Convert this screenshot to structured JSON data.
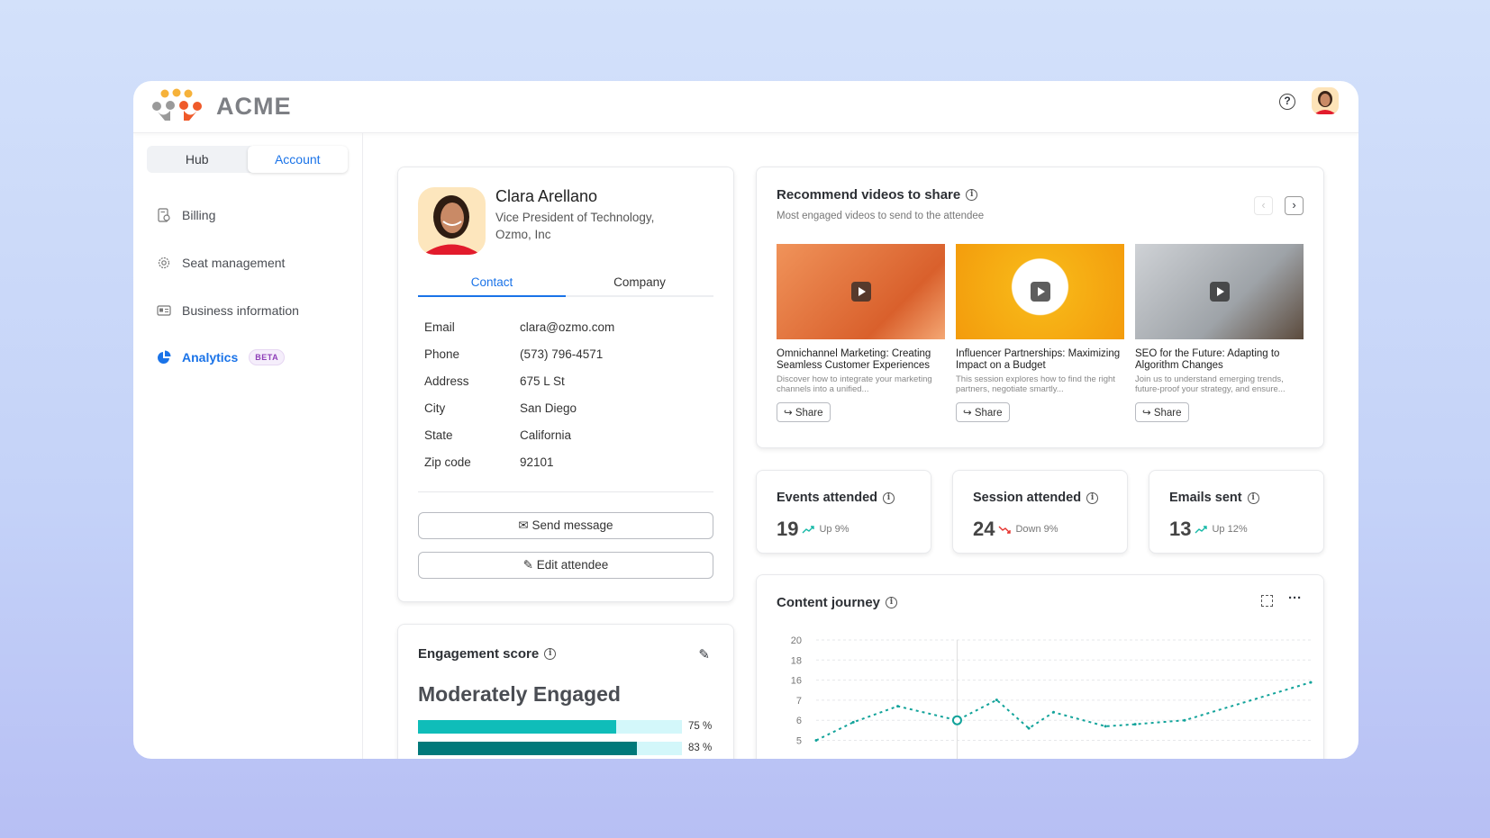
{
  "app": {
    "name": "ACME"
  },
  "header": {
    "help_icon": "question-circle-icon",
    "avatar": "user-avatar"
  },
  "sidebar": {
    "toggle": [
      "Hub",
      "Account"
    ],
    "active_toggle": "Account",
    "items": [
      {
        "label": "Billing",
        "icon": "billing-receipt-icon"
      },
      {
        "label": "Seat management",
        "icon": "gear-icon"
      },
      {
        "label": "Business information",
        "icon": "id-card-icon"
      },
      {
        "label": "Analytics",
        "icon": "pie-chart-icon",
        "badge": "BETA",
        "active": true
      }
    ]
  },
  "profile": {
    "name": "Clara Arellano",
    "title": "Vice President of Technology, Ozmo, Inc",
    "tabs": [
      "Contact",
      "Company"
    ],
    "fields": [
      {
        "k": "Email",
        "v": "clara@ozmo.com"
      },
      {
        "k": "Phone",
        "v": "(573) 796-4571"
      },
      {
        "k": "Address",
        "v": "675 L St"
      },
      {
        "k": "City",
        "v": "San Diego"
      },
      {
        "k": "State",
        "v": "California"
      },
      {
        "k": "Zip code",
        "v": "92101"
      }
    ],
    "send_label": "Send message",
    "edit_label": "Edit attendee"
  },
  "engagement": {
    "title": "Engagement score",
    "level": "Moderately Engaged",
    "bars": [
      {
        "value": 75,
        "label": "75 %",
        "color": "#0fbdb9"
      },
      {
        "value": 83,
        "label": "83 %",
        "color": "#00797a"
      }
    ]
  },
  "videos": {
    "title": "Recommend videos to share",
    "subtitle": "Most engaged videos to send to the attendee",
    "share_label": "Share",
    "items": [
      {
        "title": "Omnichannel Marketing: Creating Seamless Customer Experiences",
        "desc": "Discover how to integrate your marketing channels into a unified..."
      },
      {
        "title": "Influencer Partnerships: Maximizing Impact on a Budget",
        "desc": "This session explores how to find the right partners, negotiate smartly..."
      },
      {
        "title": "SEO for the Future: Adapting to Algorithm Changes",
        "desc": "Join us to understand emerging trends, future-proof your strategy, and ensure..."
      }
    ]
  },
  "stats": [
    {
      "label": "Events attended",
      "value": "19",
      "trend": "Up 9%",
      "dir": "up"
    },
    {
      "label": "Session attended",
      "value": "24",
      "trend": "Down 9%",
      "dir": "down"
    },
    {
      "label": "Emails sent",
      "value": "13",
      "trend": "Up 12%",
      "dir": "up"
    }
  ],
  "colors": {
    "accent": "#1a73e8",
    "up": "#14b8a6",
    "down": "#e5322d",
    "line": "#12a39a"
  },
  "chart_data": {
    "type": "line",
    "title": "Content journey",
    "yticks": [
      5,
      6,
      7,
      16,
      18,
      20
    ],
    "values": [
      5,
      5.9,
      6.7,
      6.0,
      7.1,
      5.6,
      6.4,
      5.7,
      5.8,
      6.0,
      15
    ],
    "highlight_index": 3,
    "grid": true,
    "line_style": "dotted"
  }
}
